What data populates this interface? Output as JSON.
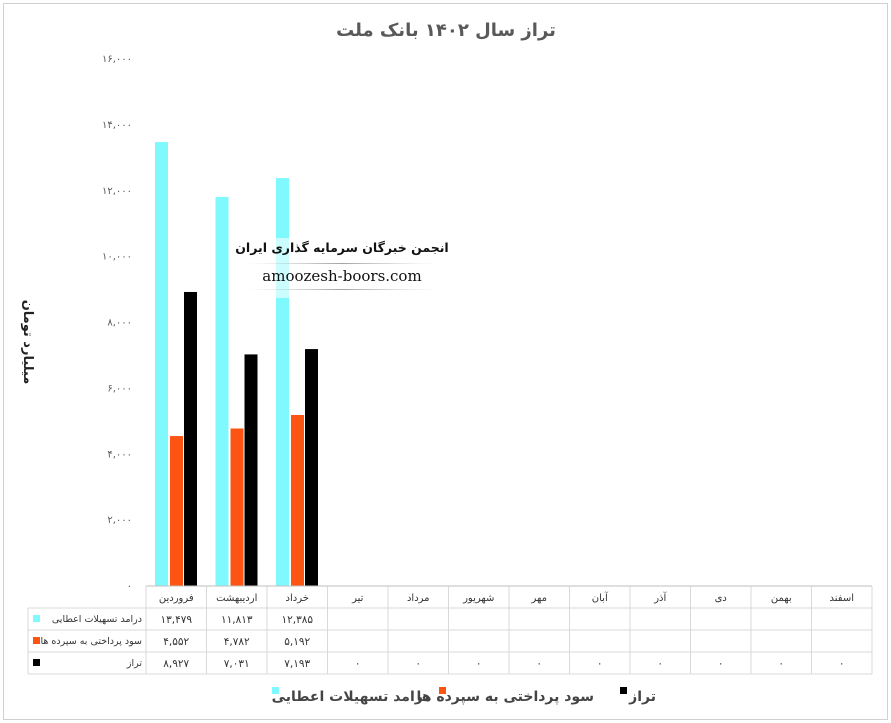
{
  "chart_data": {
    "type": "bar",
    "title": "تراز سال ۱۴۰۲ بانک ملت",
    "ylabel": "میلیارد تومان",
    "ylim": [
      0,
      16000
    ],
    "y_ticks": [
      "۰",
      "۲,۰۰۰",
      "۴,۰۰۰",
      "۶,۰۰۰",
      "۸,۰۰۰",
      "۱۰,۰۰۰",
      "۱۲,۰۰۰",
      "۱۴,۰۰۰",
      "۱۶,۰۰۰"
    ],
    "categories": [
      "فروردین",
      "اردیبهشت",
      "خرداد",
      "تیر",
      "مرداد",
      "شهریور",
      "مهر",
      "آبان",
      "آذر",
      "دی",
      "بهمن",
      "اسفند"
    ],
    "series": [
      {
        "name": "درامد تسهیلات اعطایی",
        "color": "#7ff9fd",
        "values": [
          13479,
          11813,
          12385,
          null,
          null,
          null,
          null,
          null,
          null,
          null,
          null,
          null
        ],
        "table_values": [
          "۱۳,۴۷۹",
          "۱۱,۸۱۳",
          "۱۲,۳۸۵",
          "",
          "",
          "",
          "",
          "",
          "",
          "",
          "",
          ""
        ]
      },
      {
        "name": "سود پرداختی به سپرده ها",
        "color": "#fe5413",
        "values": [
          4552,
          4782,
          5192,
          null,
          null,
          null,
          null,
          null,
          null,
          null,
          null,
          null
        ],
        "table_values": [
          "۴,۵۵۲",
          "۴,۷۸۲",
          "۵,۱۹۲",
          "",
          "",
          "",
          "",
          "",
          "",
          "",
          "",
          ""
        ]
      },
      {
        "name": "تراز",
        "color": "#000000",
        "values": [
          8927,
          7031,
          7193,
          0,
          0,
          0,
          0,
          0,
          0,
          0,
          0,
          0
        ],
        "table_values": [
          "۸,۹۲۷",
          "۷,۰۳۱",
          "۷,۱۹۳",
          "۰",
          "۰",
          "۰",
          "۰",
          "۰",
          "۰",
          "۰",
          "۰",
          "۰"
        ]
      }
    ],
    "grid": false,
    "legend_placement": "bottom"
  },
  "watermark": {
    "line1": "انجمن خبرگان سرمایه گذاری ایران",
    "line2": "amoozesh-boors.com"
  }
}
